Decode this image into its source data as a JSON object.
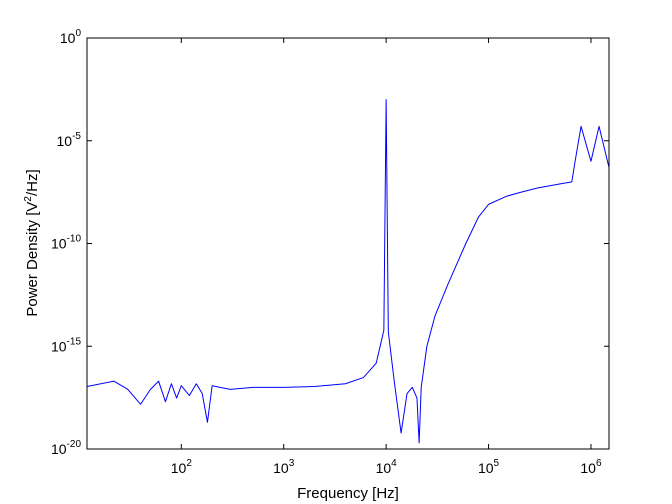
{
  "chart_data": {
    "type": "line",
    "xscale": "log",
    "yscale": "log",
    "xlim": [
      12,
      1500000
    ],
    "ylim": [
      1e-20,
      1
    ],
    "grid": false,
    "xlabel": "Frequency [Hz]",
    "ylabel": {
      "prefix": "Power Density [V",
      "sup": "2",
      "suffix": "/Hz]"
    },
    "x_ticks": [
      {
        "value": 100,
        "base": "10",
        "exp": "2"
      },
      {
        "value": 1000,
        "base": "10",
        "exp": "3"
      },
      {
        "value": 10000,
        "base": "10",
        "exp": "4"
      },
      {
        "value": 100000,
        "base": "10",
        "exp": "5"
      },
      {
        "value": 1000000,
        "base": "10",
        "exp": "6"
      }
    ],
    "y_ticks": [
      {
        "value": 1e-20,
        "base": "10",
        "exp": "-20"
      },
      {
        "value": 1e-15,
        "base": "10",
        "exp": "-15"
      },
      {
        "value": 1e-10,
        "base": "10",
        "exp": "-10"
      },
      {
        "value": 1e-05,
        "base": "10",
        "exp": "-5"
      },
      {
        "value": 1,
        "base": "10",
        "exp": "0"
      }
    ],
    "series": [
      {
        "color": "#0000ff",
        "points": [
          [
            12,
            1.1e-17
          ],
          [
            22,
            2e-17
          ],
          [
            30,
            8e-18
          ],
          [
            40,
            1.5e-18
          ],
          [
            50,
            8e-18
          ],
          [
            60,
            2e-17
          ],
          [
            70,
            2e-18
          ],
          [
            80,
            1.5e-17
          ],
          [
            90,
            3e-18
          ],
          [
            100,
            1.2e-17
          ],
          [
            120,
            4e-18
          ],
          [
            140,
            1.5e-17
          ],
          [
            160,
            5e-18
          ],
          [
            180,
            2e-19
          ],
          [
            200,
            1.2e-17
          ],
          [
            300,
            8e-18
          ],
          [
            500,
            1e-17
          ],
          [
            1000,
            1e-17
          ],
          [
            2000,
            1.1e-17
          ],
          [
            4000,
            1.5e-17
          ],
          [
            6000,
            3e-17
          ],
          [
            8000,
            1.5e-16
          ],
          [
            9500,
            6e-15
          ],
          [
            10000,
            0.001
          ],
          [
            10500,
            5e-15
          ],
          [
            12000,
            2e-17
          ],
          [
            14000,
            6e-20
          ],
          [
            16000,
            5e-18
          ],
          [
            18000,
            1e-17
          ],
          [
            20000,
            3e-18
          ],
          [
            21000,
            2e-20
          ],
          [
            22000,
            1e-17
          ],
          [
            25000,
            1e-15
          ],
          [
            30000,
            3e-14
          ],
          [
            40000,
            1e-12
          ],
          [
            60000,
            1e-10
          ],
          [
            80000,
            2e-09
          ],
          [
            100000,
            8e-09
          ],
          [
            150000,
            2e-08
          ],
          [
            200000,
            3e-08
          ],
          [
            300000,
            5e-08
          ],
          [
            500000,
            8e-08
          ],
          [
            650000,
            1e-07
          ],
          [
            700000,
            1e-06
          ],
          [
            800000,
            5e-05
          ],
          [
            1000000,
            1e-06
          ],
          [
            1200000,
            5e-05
          ],
          [
            1500000,
            5e-07
          ]
        ]
      }
    ]
  }
}
